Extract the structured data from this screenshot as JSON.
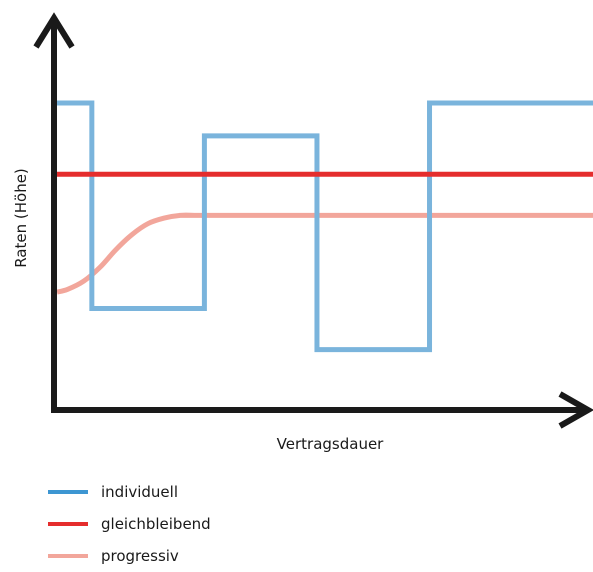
{
  "chart_data": {
    "type": "line",
    "title": "",
    "xlabel": "Vertragsdauer",
    "ylabel": "Raten (Höhe)",
    "xlim": [
      0,
      100
    ],
    "ylim": [
      0,
      100
    ],
    "axis_ticks": false,
    "grid": false,
    "legend_position": "bottom-left",
    "series": [
      {
        "name": "individuell",
        "color": "#7ab4dc",
        "legend_color": "#3d96d2",
        "style": "step",
        "x": [
          0,
          6.5,
          6.5,
          27.5,
          27.5,
          48.5,
          48.5,
          69.5,
          69.5,
          100
        ],
        "y": [
          100,
          100,
          25,
          25,
          88,
          88,
          10,
          10,
          100,
          100
        ]
      },
      {
        "name": "gleichbleibend",
        "color": "#e52d2d",
        "legend_color": "#e52d2d",
        "style": "line",
        "x": [
          0,
          100
        ],
        "y": [
          74,
          74
        ]
      },
      {
        "name": "progressiv",
        "color": "#f2a69b",
        "legend_color": "#f2a69b",
        "style": "smooth",
        "x": [
          0,
          2,
          5,
          8,
          11,
          14,
          17,
          20,
          23,
          26,
          29,
          100
        ],
        "y": [
          31,
          32,
          35,
          40,
          46.5,
          52,
          56,
          58,
          59,
          59,
          59,
          59
        ]
      }
    ]
  }
}
